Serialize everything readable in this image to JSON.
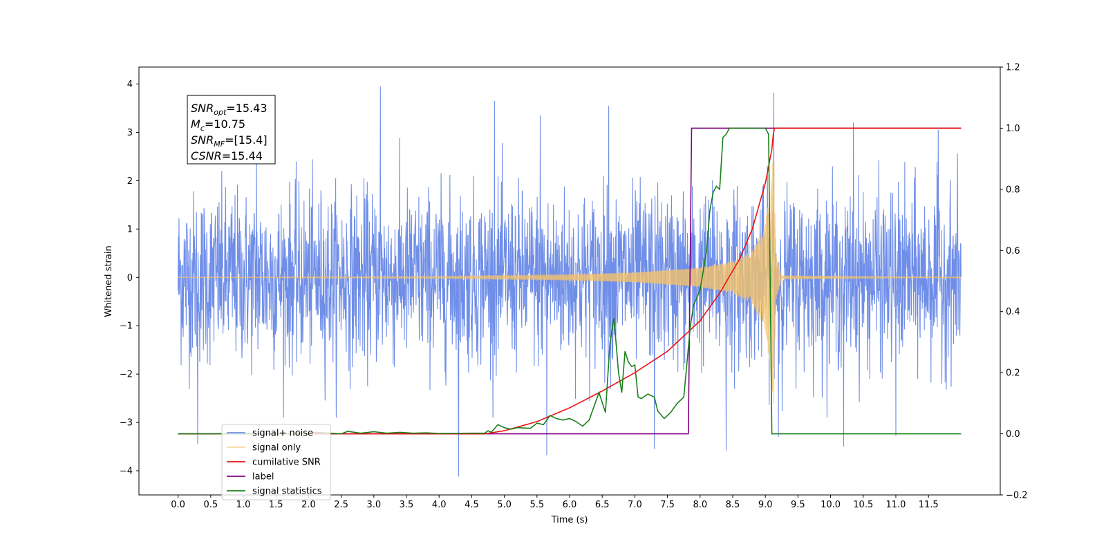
{
  "chart_data": {
    "type": "line",
    "xlabel": "Time (s)",
    "ylabel": "Whitened strain",
    "xlim": [
      -0.6,
      12.6
    ],
    "ylim_left": [
      -4.5,
      4.35
    ],
    "ylim_right": [
      -0.2,
      1.2
    ],
    "x_ticks": [
      "0.0",
      "0.5",
      "1.0",
      "1.5",
      "2.0",
      "2.5",
      "3.0",
      "3.5",
      "4.0",
      "4.5",
      "5.0",
      "5.5",
      "6.0",
      "6.5",
      "7.0",
      "7.5",
      "8.0",
      "8.5",
      "9.0",
      "9.5",
      "10.0",
      "10.5",
      "11.0",
      "11.5"
    ],
    "y_ticks_left": [
      "4",
      "3",
      "2",
      "1",
      "0",
      "−1",
      "−2",
      "−3",
      "−4"
    ],
    "y_ticks_right": [
      "1.2",
      "1.0",
      "0.8",
      "0.6",
      "0.4",
      "0.2",
      "0.0",
      "−0.2"
    ],
    "grid": false,
    "legend_placement": "lower-left",
    "stats_box": [
      {
        "sym": "SNR",
        "sub": "opt",
        "val": "=15.43"
      },
      {
        "sym": "M",
        "sub": "c",
        "val": "=10.75"
      },
      {
        "sym": "SNR",
        "sub": "MF",
        "val": "=[15.4]"
      },
      {
        "sym": "CSNR",
        "sub": "",
        "val": "=15.44"
      }
    ],
    "series": [
      {
        "name": "signal+ noise",
        "axis": "left",
        "color": "#6f8ee8",
        "kind": "noise",
        "x_range": [
          0.0,
          12.0
        ],
        "amplitude_std": 1.0,
        "extremes": [
          [
            0.3,
            -3.45
          ],
          [
            1.2,
            2.75
          ],
          [
            3.1,
            3.95
          ],
          [
            4.3,
            -4.12
          ],
          [
            4.85,
            3.65
          ],
          [
            5.55,
            3.35
          ],
          [
            5.65,
            -3.68
          ],
          [
            6.6,
            3.55
          ],
          [
            7.3,
            -3.55
          ],
          [
            8.4,
            -3.58
          ],
          [
            9.13,
            3.82
          ],
          [
            9.2,
            -3.3
          ],
          [
            10.2,
            -3.5
          ],
          [
            10.35,
            3.2
          ],
          [
            11.0,
            -3.28
          ],
          [
            11.65,
            3.05
          ]
        ]
      },
      {
        "name": "signal only",
        "axis": "left",
        "color": "#f5c36a",
        "kind": "chirp",
        "x_range": [
          0.0,
          12.0
        ],
        "merger_time": 9.13,
        "envelope": [
          [
            0.0,
            0.005
          ],
          [
            4.0,
            0.02
          ],
          [
            6.0,
            0.06
          ],
          [
            7.0,
            0.1
          ],
          [
            8.0,
            0.2
          ],
          [
            8.5,
            0.33
          ],
          [
            8.8,
            0.55
          ],
          [
            9.0,
            1.1
          ],
          [
            9.1,
            2.2
          ],
          [
            9.13,
            2.75
          ],
          [
            9.16,
            0.5
          ],
          [
            9.25,
            0.04
          ],
          [
            12.0,
            0.005
          ]
        ]
      },
      {
        "name": "cumilative SNR",
        "axis": "right",
        "color": "#ee1111",
        "kind": "line",
        "x": [
          0,
          4.7,
          5.0,
          5.5,
          6.0,
          6.5,
          7.0,
          7.5,
          8.0,
          8.3,
          8.6,
          8.8,
          9.0,
          9.1,
          9.13,
          12.0
        ],
        "values": [
          0,
          0,
          0.01,
          0.04,
          0.085,
          0.14,
          0.2,
          0.27,
          0.37,
          0.46,
          0.57,
          0.67,
          0.82,
          0.93,
          1.0,
          1.0
        ]
      },
      {
        "name": "label",
        "axis": "right",
        "color": "#800080",
        "kind": "line",
        "x": [
          0,
          7.82,
          7.87,
          12.0
        ],
        "values": [
          0,
          0,
          1.0,
          1.0
        ]
      },
      {
        "name": "signal statistics",
        "axis": "right",
        "color": "#1a7f1a",
        "kind": "line",
        "x": [
          0,
          2.0,
          2.1,
          2.5,
          2.6,
          2.8,
          3.0,
          3.2,
          3.4,
          3.6,
          3.8,
          4.0,
          4.5,
          4.7,
          4.75,
          4.8,
          4.9,
          5.0,
          5.1,
          5.2,
          5.4,
          5.5,
          5.6,
          5.7,
          5.75,
          5.8,
          5.9,
          6.0,
          6.1,
          6.2,
          6.3,
          6.45,
          6.55,
          6.62,
          6.68,
          6.75,
          6.8,
          6.85,
          6.9,
          6.95,
          7.0,
          7.05,
          7.1,
          7.2,
          7.3,
          7.35,
          7.45,
          7.55,
          7.65,
          7.75,
          7.85,
          7.9,
          8.0,
          8.1,
          8.15,
          8.2,
          8.25,
          8.3,
          8.35,
          8.4,
          8.45,
          8.5,
          8.6,
          8.7,
          9.0,
          9.05,
          9.1,
          9.15,
          9.2,
          12.0
        ],
        "values": [
          0,
          0,
          0.005,
          0,
          0.008,
          0.002,
          0.007,
          0.002,
          0.005,
          0.002,
          0.003,
          0.001,
          0.002,
          0.002,
          0.01,
          0.005,
          0.03,
          0.02,
          0.015,
          0.02,
          0.018,
          0.035,
          0.03,
          0.06,
          0.055,
          0.05,
          0.045,
          0.05,
          0.04,
          0.025,
          0.045,
          0.135,
          0.07,
          0.3,
          0.38,
          0.2,
          0.135,
          0.27,
          0.235,
          0.22,
          0.225,
          0.12,
          0.115,
          0.13,
          0.12,
          0.075,
          0.05,
          0.07,
          0.1,
          0.12,
          0.35,
          0.42,
          0.47,
          0.6,
          0.73,
          0.79,
          0.81,
          0.8,
          0.97,
          0.98,
          1.0,
          1.0,
          1.0,
          1.0,
          1.0,
          0.98,
          0.0,
          0.0,
          0.0,
          0.0
        ]
      }
    ]
  }
}
